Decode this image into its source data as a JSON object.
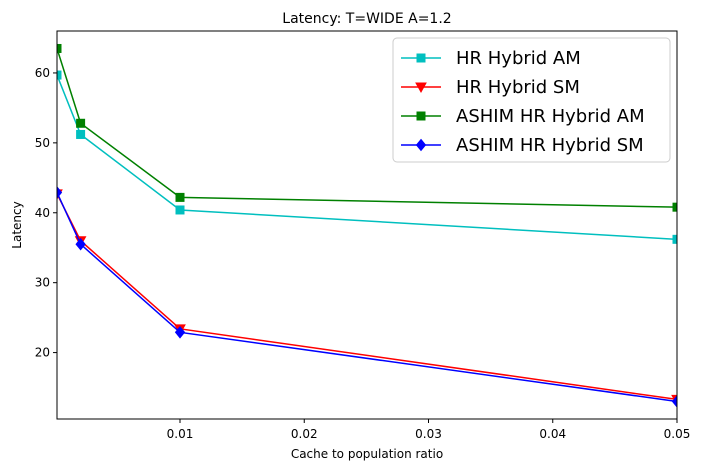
{
  "chart_data": {
    "type": "line",
    "title": "Latency: T=WIDE A=1.2",
    "xlabel": "Cache to population ratio",
    "ylabel": "Latency",
    "xlim": [
      0.0001,
      0.05
    ],
    "ylim": [
      10.5,
      66
    ],
    "xticks": [
      0.01,
      0.02,
      0.03,
      0.04,
      0.05
    ],
    "xtick_labels": [
      "0.01",
      "0.02",
      "0.03",
      "0.04",
      "0.05"
    ],
    "yticks": [
      20,
      30,
      40,
      50,
      60
    ],
    "ytick_labels": [
      "20",
      "30",
      "40",
      "50",
      "60"
    ],
    "grid": false,
    "legend_position": "top-right",
    "x": [
      0.0001,
      0.002,
      0.01,
      0.05
    ],
    "series": [
      {
        "name": "HR Hybrid AM",
        "color": "#00bfbf",
        "marker": "square",
        "values": [
          59.7,
          51.2,
          40.4,
          36.2
        ]
      },
      {
        "name": "HR Hybrid SM",
        "color": "#ff0000",
        "marker": "triangle-down",
        "values": [
          42.7,
          36.0,
          23.4,
          13.3
        ]
      },
      {
        "name": "ASHIM HR Hybrid AM",
        "color": "#008000",
        "marker": "square",
        "values": [
          63.5,
          52.8,
          42.2,
          40.8
        ]
      },
      {
        "name": "ASHIM HR Hybrid SM",
        "color": "#0000ff",
        "marker": "diamond",
        "values": [
          42.9,
          35.5,
          22.9,
          13.0
        ]
      }
    ]
  }
}
